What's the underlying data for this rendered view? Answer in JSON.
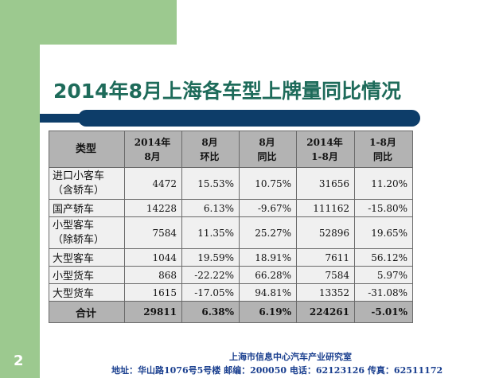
{
  "slide": {
    "title": "2014年8月上海各车型上牌量同比情况",
    "page_number": "2",
    "footer_org": "上海市信息中心汽车产业研究室",
    "footer_address": "地址：华山路1076号5号楼   邮编：200050  电话：62123126  传真：62511172",
    "colors": {
      "accent_green": "#9cc98f",
      "title_color": "#1e6b5a",
      "bar_color": "#0d3d69",
      "footer_color": "#1a3f8f"
    }
  },
  "table": {
    "headers": [
      [
        "类型"
      ],
      [
        "2014年",
        "8月"
      ],
      [
        "8月",
        "环比"
      ],
      [
        "8月",
        "同比"
      ],
      [
        "2014年",
        "1-8月"
      ],
      [
        "1-8月",
        "同比"
      ]
    ],
    "rows": [
      {
        "type": [
          "进口小客车",
          "（含轿车）"
        ],
        "aug": "4472",
        "mom": "15.53%",
        "yoy": "10.75%",
        "ytd": "31656",
        "ytd_yoy": "11.20%"
      },
      {
        "type": [
          "国产轿车"
        ],
        "aug": "14228",
        "mom": "6.13%",
        "yoy": "-9.67%",
        "ytd": "111162",
        "ytd_yoy": "-15.80%"
      },
      {
        "type": [
          "小型客车",
          "（除轿车）"
        ],
        "aug": "7584",
        "mom": "11.35%",
        "yoy": "25.27%",
        "ytd": "52896",
        "ytd_yoy": "19.65%"
      },
      {
        "type": [
          "大型客车"
        ],
        "aug": "1044",
        "mom": "19.59%",
        "yoy": "18.91%",
        "ytd": "7611",
        "ytd_yoy": "56.12%"
      },
      {
        "type": [
          "小型货车"
        ],
        "aug": "868",
        "mom": "-22.22%",
        "yoy": "66.28%",
        "ytd": "7584",
        "ytd_yoy": "5.97%"
      },
      {
        "type": [
          "大型货车"
        ],
        "aug": "1615",
        "mom": "-17.05%",
        "yoy": "94.81%",
        "ytd": "13352",
        "ytd_yoy": "-31.08%"
      }
    ],
    "total": {
      "type": "合计",
      "aug": "29811",
      "mom": "6.38%",
      "yoy": "6.19%",
      "ytd": "224261",
      "ytd_yoy": "-5.01%"
    }
  }
}
